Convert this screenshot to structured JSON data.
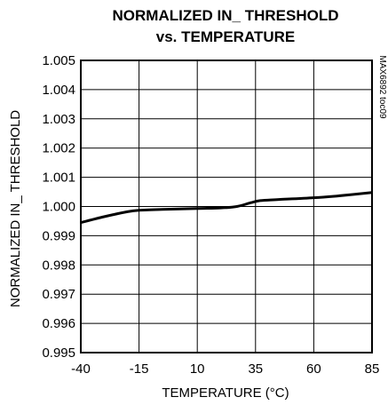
{
  "chart_data": {
    "type": "line",
    "title_line1": "NORMALIZED IN_ THRESHOLD",
    "title_line2": "vs. TEMPERATURE",
    "xlabel": "TEMPERATURE (°C)",
    "ylabel": "NORMALIZED IN_ THRESHOLD",
    "part_label": "MAX6892 toc09",
    "xlim": [
      -40,
      85
    ],
    "ylim": [
      0.995,
      1.005
    ],
    "x_ticks": [
      -40,
      -15,
      10,
      35,
      60,
      85
    ],
    "x_tick_labels": [
      "-40",
      "-15",
      "10",
      "35",
      "60",
      "85"
    ],
    "y_ticks": [
      0.995,
      0.996,
      0.997,
      0.998,
      0.999,
      1.0,
      1.001,
      1.002,
      1.003,
      1.004,
      1.005
    ],
    "y_tick_labels": [
      "0.995",
      "0.996",
      "0.997",
      "0.998",
      "0.999",
      "1.000",
      "1.001",
      "1.002",
      "1.003",
      "1.004",
      "1.005"
    ],
    "grid": true,
    "series": [
      {
        "x": [
          -40,
          -30,
          -20,
          -15,
          -5,
          10,
          20,
          27,
          33,
          37,
          45,
          60,
          70,
          85
        ],
        "y": [
          0.99945,
          0.99965,
          0.99982,
          0.99987,
          0.9999,
          0.99993,
          0.99995,
          1.0,
          1.00013,
          1.0002,
          1.00024,
          1.0003,
          1.00036,
          1.00048
        ],
        "color": "#000000"
      }
    ]
  }
}
